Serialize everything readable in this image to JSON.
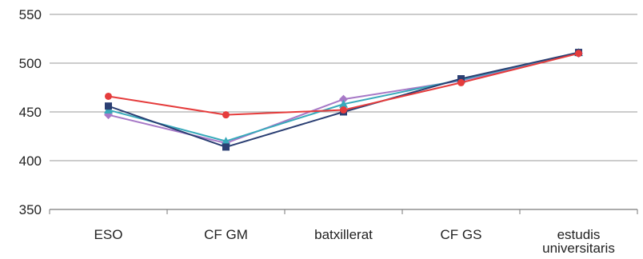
{
  "chart_data": {
    "type": "line",
    "title": "",
    "xlabel": "",
    "ylabel": "",
    "ylim": [
      350,
      550
    ],
    "yticks": [
      350,
      400,
      450,
      500,
      550
    ],
    "grid": true,
    "legend": "none",
    "categories": [
      [
        "ESO"
      ],
      [
        "CF GM"
      ],
      [
        "batxillerat"
      ],
      [
        "CF GS"
      ],
      [
        "estudis",
        "universitaris"
      ]
    ],
    "series": [
      {
        "color": "#a779c7",
        "marker": "diamond",
        "values": [
          447,
          418,
          463,
          482,
          510
        ]
      },
      {
        "color": "#38aabb",
        "marker": "triangle",
        "values": [
          452,
          420,
          458,
          483,
          511
        ]
      },
      {
        "color": "#2b3f73",
        "marker": "square",
        "values": [
          456,
          414,
          450,
          484,
          511
        ]
      },
      {
        "color": "#e53c3c",
        "marker": "circle",
        "values": [
          466,
          447,
          452,
          480,
          510
        ]
      }
    ]
  }
}
